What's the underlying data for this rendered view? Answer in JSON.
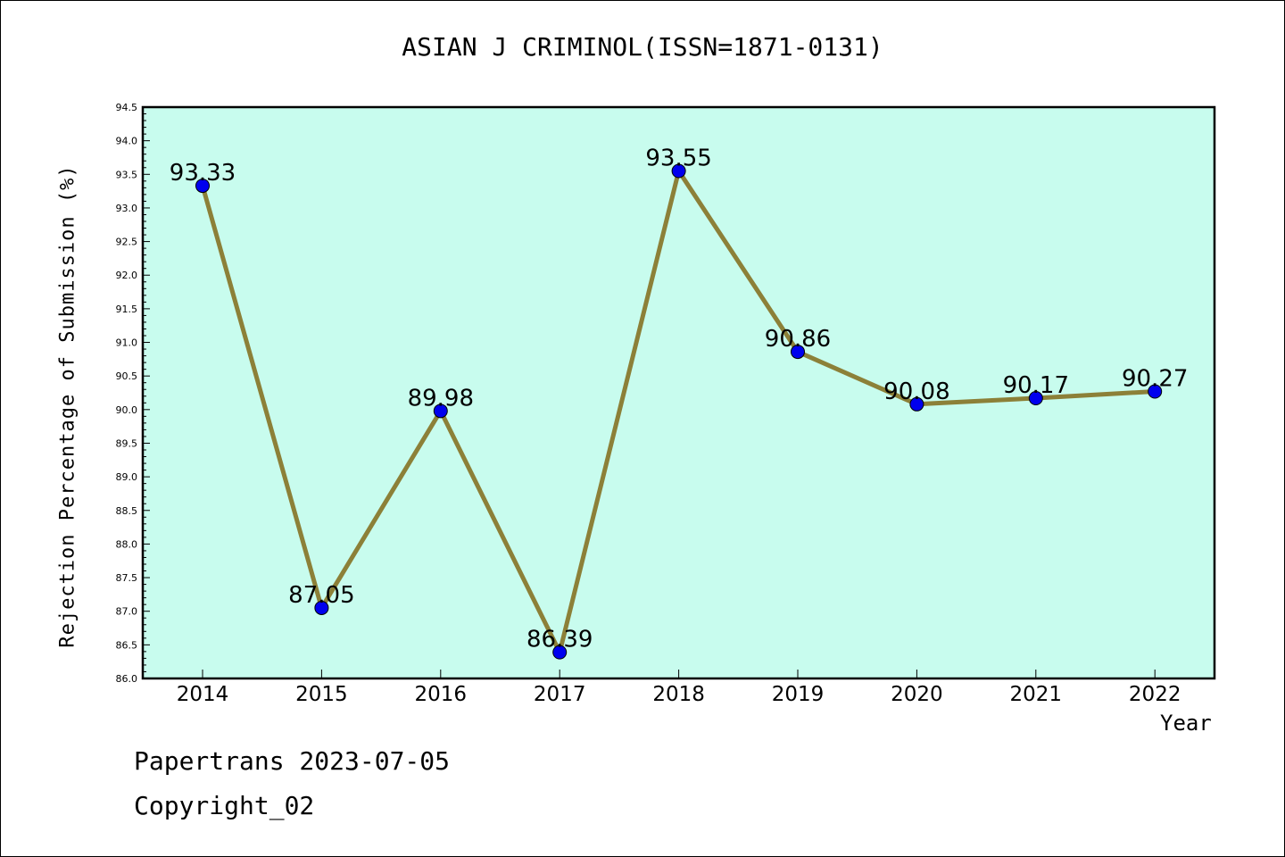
{
  "chart_data": {
    "type": "line",
    "title": "ASIAN J CRIMINOL(ISSN=1871-0131)",
    "xlabel": "Year",
    "ylabel": "Rejection Percentage of Submission (%)",
    "categories": [
      "2014",
      "2015",
      "2016",
      "2017",
      "2018",
      "2019",
      "2020",
      "2021",
      "2022"
    ],
    "values": [
      93.33,
      87.05,
      89.98,
      86.39,
      93.55,
      90.86,
      90.08,
      90.17,
      90.27
    ],
    "data_labels": [
      "93.33",
      "87.05",
      "89.98",
      "86.39",
      "93.55",
      "90.86",
      "90.08",
      "90.17",
      "90.27"
    ],
    "ylim": [
      86.0,
      94.5
    ],
    "yticks": [
      "86.0",
      "86.5",
      "87.0",
      "87.5",
      "88.0",
      "88.5",
      "89.0",
      "89.5",
      "90.0",
      "90.5",
      "91.0",
      "91.5",
      "92.0",
      "92.5",
      "93.0",
      "93.5",
      "94.0",
      "94.5"
    ],
    "grid": false,
    "colors": {
      "plot_background": "#c8fcee",
      "line": "#8c8038",
      "marker": "#0000ee"
    }
  },
  "footer": {
    "line1": "Papertrans 2023-07-05",
    "line2": "Copyright_02"
  }
}
